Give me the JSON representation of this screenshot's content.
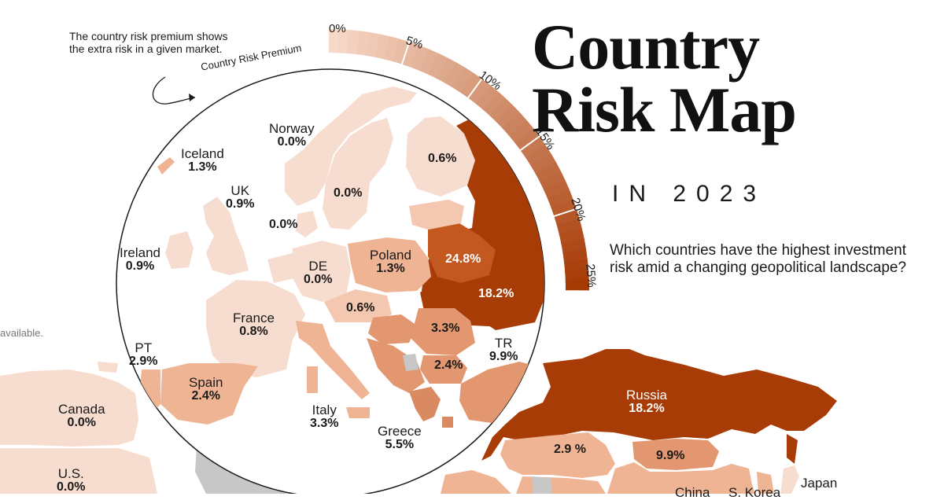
{
  "title_line1": "Country",
  "title_line2": "Risk Map",
  "subtitle_year": "IN 2023",
  "description": "Which countries have the highest investment risk amid a changing geopolitical landscape?",
  "note": "The country risk premium shows the extra risk in a given market.",
  "scale": {
    "title": "Country Risk Premium",
    "ticks": [
      "0%",
      "5%",
      "10%",
      "15%",
      "20%",
      "25%"
    ],
    "color_min": "#f7d9c8",
    "color_max": "#a63a05"
  },
  "partial_note": "available.",
  "colors": {
    "no_data": "#c7c7c7",
    "lowest": "#f7dcd0",
    "low": "#efb493",
    "mid": "#e39770",
    "high": "#a83c06"
  },
  "inset_labels": [
    {
      "key": "norway",
      "name": "Norway",
      "value": "0.0%"
    },
    {
      "key": "iceland",
      "name": "Iceland",
      "value": "1.3%"
    },
    {
      "key": "uk",
      "name": "UK",
      "value": "0.9%"
    },
    {
      "key": "ireland",
      "name": "Ireland",
      "value": "0.9%"
    },
    {
      "key": "sweden",
      "name": "",
      "value": "0.0%"
    },
    {
      "key": "finland",
      "name": "",
      "value": "0.6%"
    },
    {
      "key": "denmark",
      "name": "",
      "value": "0.0%"
    },
    {
      "key": "germany",
      "name": "DE",
      "value": "0.0%"
    },
    {
      "key": "poland",
      "name": "Poland",
      "value": "1.3%"
    },
    {
      "key": "belarus",
      "name": "",
      "value": "24.8%"
    },
    {
      "key": "russia-inset",
      "name": "",
      "value": "18.2%"
    },
    {
      "key": "france",
      "name": "France",
      "value": "0.8%"
    },
    {
      "key": "austria",
      "name": "",
      "value": "0.6%"
    },
    {
      "key": "romania",
      "name": "",
      "value": "3.3%"
    },
    {
      "key": "bulgaria",
      "name": "",
      "value": "2.4%"
    },
    {
      "key": "portugal",
      "name": "PT",
      "value": "2.9%"
    },
    {
      "key": "spain",
      "name": "Spain",
      "value": "2.4%"
    },
    {
      "key": "turkey",
      "name": "TR",
      "value": "9.9%"
    },
    {
      "key": "italy",
      "name": "Italy",
      "value": "3.3%"
    },
    {
      "key": "greece",
      "name": "Greece",
      "value": "5.5%"
    }
  ],
  "world_labels": [
    {
      "key": "canada",
      "name": "Canada",
      "value": "0.0%"
    },
    {
      "key": "us",
      "name": "U.S.",
      "value": "0.0%"
    },
    {
      "key": "russia",
      "name": "Russia",
      "value": "18.2%"
    },
    {
      "key": "kazakhstan",
      "name": "",
      "value": "2.9 %"
    },
    {
      "key": "mongolia",
      "name": "",
      "value": "9.9%"
    },
    {
      "key": "china",
      "name": "China",
      "value": ""
    },
    {
      "key": "skorea",
      "name": "S. Korea",
      "value": ""
    },
    {
      "key": "japan",
      "name": "Japan",
      "value": ""
    }
  ]
}
